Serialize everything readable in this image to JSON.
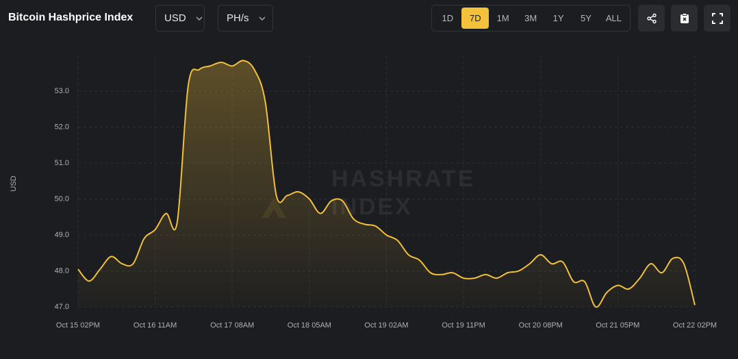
{
  "header": {
    "title": "Bitcoin Hashprice Index"
  },
  "controls": {
    "currency": "USD",
    "unit": "PH/s",
    "ranges": [
      "1D",
      "7D",
      "1M",
      "3M",
      "1Y",
      "5Y",
      "ALL"
    ],
    "active_range": "7D"
  },
  "chart_data": {
    "type": "line",
    "ylabel": "USD",
    "watermark": [
      "HASHRATE",
      "INDEX"
    ],
    "color": "#f3c13a",
    "grid": true,
    "x": [
      "Oct 15 02PM",
      "Oct 15 05PM",
      "Oct 15 08PM",
      "Oct 15 11PM",
      "Oct 16 02AM",
      "Oct 16 05AM",
      "Oct 16 08AM",
      "Oct 16 11AM",
      "Oct 16 02PM",
      "Oct 16 05PM",
      "Oct 16 08PM",
      "Oct 16 11PM",
      "Oct 17 02AM",
      "Oct 17 05AM",
      "Oct 17 08AM",
      "Oct 17 11AM",
      "Oct 17 02PM",
      "Oct 17 05PM",
      "Oct 17 08PM",
      "Oct 17 11PM",
      "Oct 18 02AM",
      "Oct 18 05AM",
      "Oct 18 08AM",
      "Oct 18 11AM",
      "Oct 18 02PM",
      "Oct 18 05PM",
      "Oct 18 08PM",
      "Oct 18 11PM",
      "Oct 19 02AM",
      "Oct 19 05AM",
      "Oct 19 08AM",
      "Oct 19 11AM",
      "Oct 19 02PM",
      "Oct 19 05PM",
      "Oct 19 08PM",
      "Oct 19 11PM",
      "Oct 20 02AM",
      "Oct 20 05AM",
      "Oct 20 08AM",
      "Oct 20 11AM",
      "Oct 20 02PM",
      "Oct 20 05PM",
      "Oct 20 08PM",
      "Oct 20 11PM",
      "Oct 21 02AM",
      "Oct 21 05AM",
      "Oct 21 08AM",
      "Oct 21 11AM",
      "Oct 21 02PM",
      "Oct 21 05PM",
      "Oct 21 08PM",
      "Oct 21 11PM",
      "Oct 22 02AM",
      "Oct 22 05AM",
      "Oct 22 08AM",
      "Oct 22 11AM",
      "Oct 22 02PM"
    ],
    "values": [
      48.05,
      47.72,
      48.05,
      48.4,
      48.2,
      48.2,
      48.9,
      49.15,
      49.6,
      49.35,
      53.15,
      53.6,
      53.7,
      53.8,
      53.7,
      53.85,
      53.6,
      52.7,
      50.1,
      50.1,
      50.2,
      50.0,
      49.6,
      49.95,
      49.95,
      49.45,
      49.3,
      49.25,
      49.0,
      48.85,
      48.45,
      48.3,
      47.95,
      47.9,
      47.95,
      47.8,
      47.8,
      47.9,
      47.8,
      47.95,
      48.0,
      48.2,
      48.45,
      48.2,
      48.25,
      47.7,
      47.7,
      47.0,
      47.4,
      47.6,
      47.5,
      47.8,
      48.2,
      47.95,
      48.35,
      48.2,
      47.05
    ],
    "xticks": [
      "Oct 15 02PM",
      "Oct 16 11AM",
      "Oct 17 08AM",
      "Oct 18 05AM",
      "Oct 19 02AM",
      "Oct 19 11PM",
      "Oct 20 08PM",
      "Oct 21 05PM",
      "Oct 22 02PM"
    ],
    "ylim": [
      47,
      54
    ],
    "yticks": [
      {
        "value": 47,
        "label": "47.0"
      },
      {
        "value": 48,
        "label": "48.0"
      },
      {
        "value": 49,
        "label": "49.0"
      },
      {
        "value": 50,
        "label": "50.0"
      },
      {
        "value": 51,
        "label": "51.0"
      },
      {
        "value": 52,
        "label": "52.0"
      },
      {
        "value": 53,
        "label": "53.0"
      }
    ]
  }
}
